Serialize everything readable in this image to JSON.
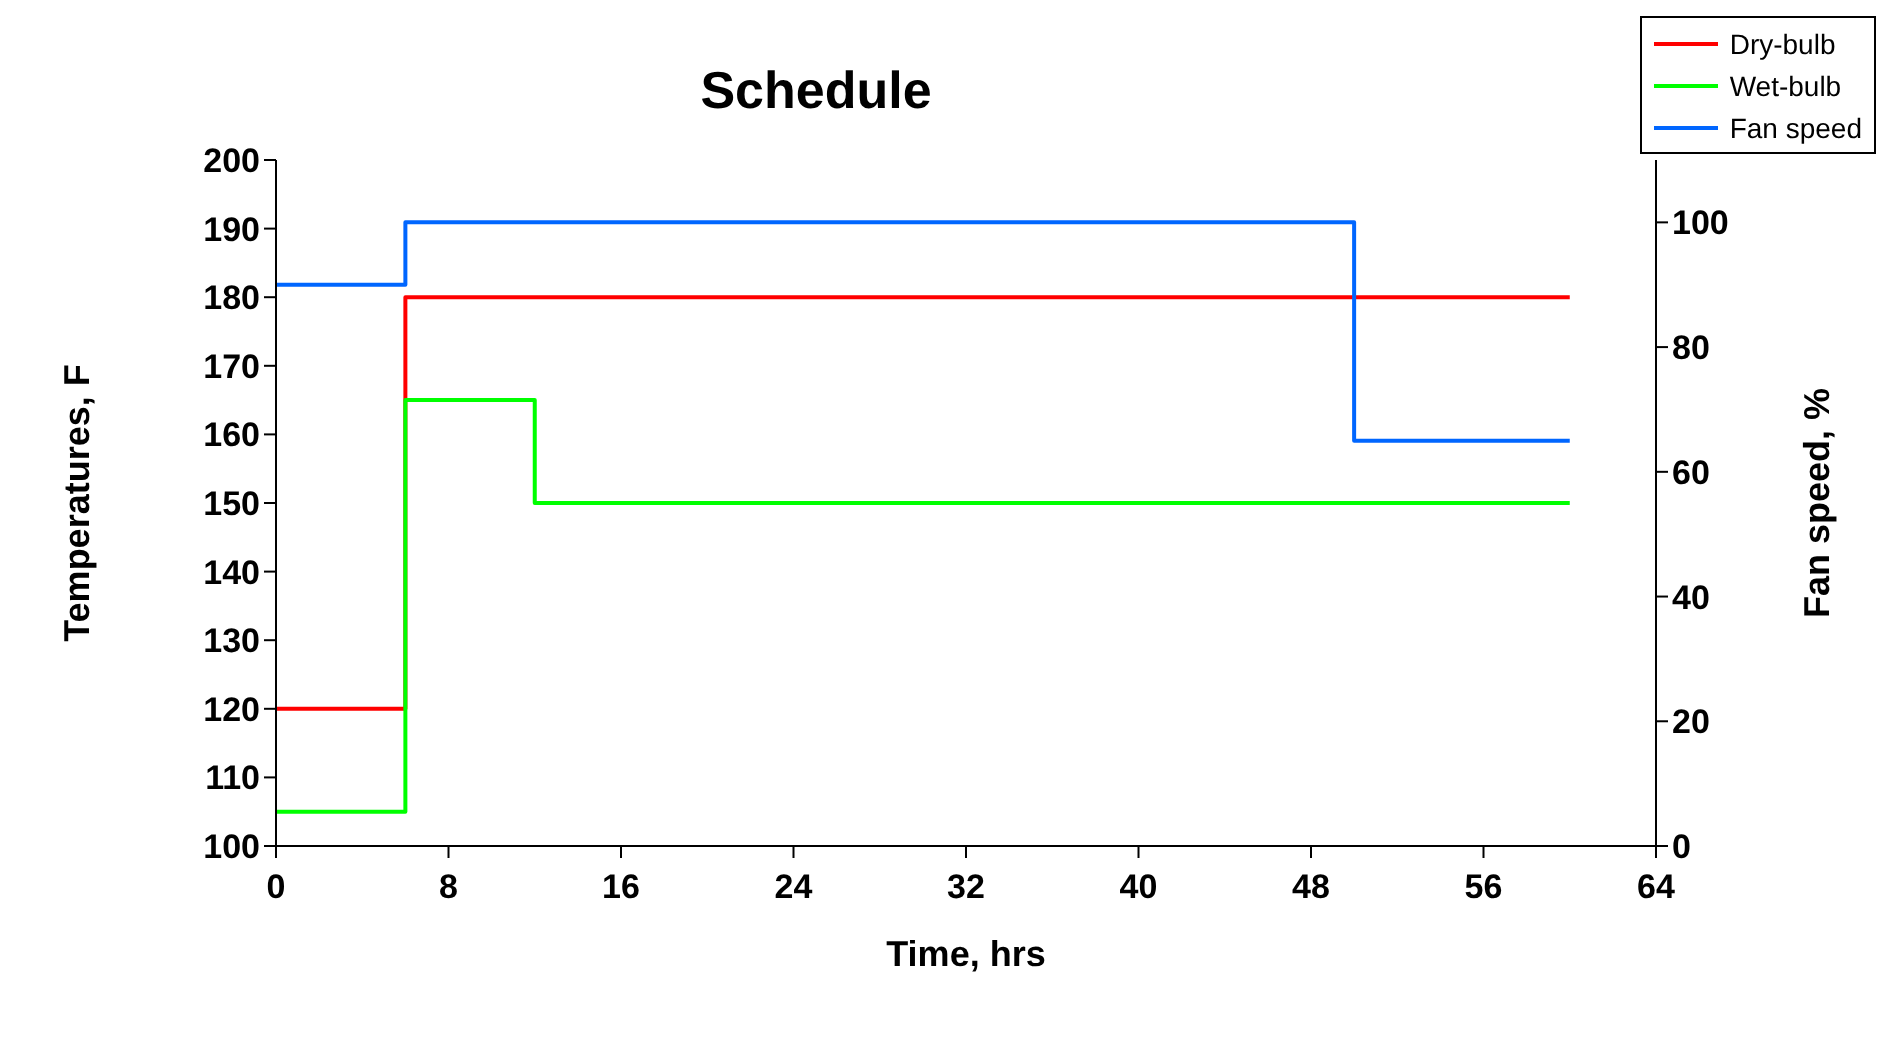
{
  "chart_data": {
    "type": "step",
    "title": "Schedule",
    "xlabel": "Time, hrs",
    "ylabel": "Temperatures, F",
    "y2label": "Fan speed, %",
    "xlim": [
      0,
      64
    ],
    "xticks": [
      0,
      8,
      16,
      24,
      32,
      40,
      48,
      56,
      64
    ],
    "ylim": [
      100,
      200
    ],
    "yticks": [
      100,
      110,
      120,
      130,
      140,
      150,
      160,
      170,
      180,
      190,
      200
    ],
    "y2lim": [
      0,
      110
    ],
    "y2ticks": [
      0,
      20,
      40,
      60,
      80,
      100
    ],
    "legend": "top right",
    "marker": "none",
    "line_style": "solid",
    "series": [
      {
        "name": "Dry-bulb",
        "color": "#ff0000",
        "x": [
          0,
          6,
          60
        ],
        "values": [
          120,
          180,
          180
        ]
      },
      {
        "name": "Wet-bulb",
        "color": "#00ff00",
        "x": [
          0,
          6,
          12,
          60
        ],
        "values": [
          105,
          165,
          150,
          150
        ]
      },
      {
        "name": "Fan speed",
        "color": "#0066ff",
        "axis": "y2",
        "x": [
          0,
          6,
          50,
          60
        ],
        "values": [
          90,
          100,
          65,
          65
        ]
      }
    ]
  }
}
